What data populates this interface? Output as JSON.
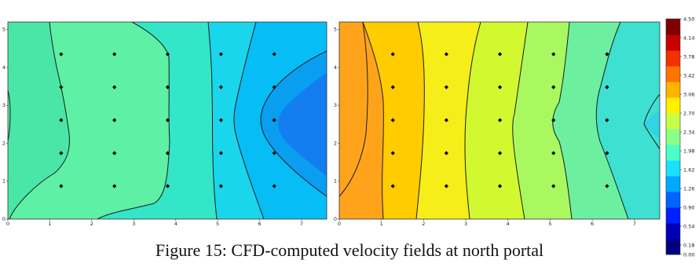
{
  "caption": "Figure 15: CFD-computed velocity fields at north portal",
  "chart_data": [
    {
      "type": "heatmap",
      "subtype": "filled-contour",
      "x_ticks": [
        "0",
        "1",
        "2",
        "3",
        "4",
        "5",
        "6",
        "7"
      ],
      "y_ticks": [
        "0",
        "1",
        "2",
        "3",
        "4",
        "5"
      ],
      "xlim": [
        0,
        7.6
      ],
      "ylim": [
        0,
        5.2
      ],
      "probe_points": {
        "x": [
          1.27,
          2.54,
          3.81,
          5.08,
          6.35
        ],
        "y": [
          0.87,
          1.74,
          2.61,
          3.48,
          4.35
        ]
      },
      "x": [
        0,
        1,
        2,
        3,
        4,
        5,
        6,
        7,
        7.6
      ],
      "field_description_values": [
        1.98,
        1.98,
        1.98,
        1.98,
        1.8,
        1.62,
        1.26,
        0.9,
        1.26
      ]
    },
    {
      "type": "heatmap",
      "subtype": "filled-contour",
      "x_ticks": [
        "0",
        "1",
        "2",
        "3",
        "4",
        "5",
        "6",
        "7"
      ],
      "y_ticks": [
        "0",
        "1",
        "2",
        "3",
        "4",
        "5"
      ],
      "xlim": [
        0,
        7.6
      ],
      "ylim": [
        0,
        5.2
      ],
      "probe_points": {
        "x": [
          1.27,
          2.54,
          3.81,
          5.08,
          6.35
        ],
        "y": [
          0.87,
          1.74,
          2.61,
          3.48,
          4.35
        ]
      },
      "x": [
        0,
        1,
        2,
        3,
        4,
        5,
        6,
        7,
        7.6
      ],
      "field_description_values": [
        3.06,
        2.95,
        2.6,
        2.4,
        2.34,
        2.1,
        1.9,
        1.62,
        1.62
      ]
    }
  ],
  "colorbar": {
    "ticks": [
      "4.50",
      "4.14",
      "3.78",
      "3.42",
      "3.06",
      "2.70",
      "2.34",
      "1.98",
      "1.62",
      "1.26",
      "0.90",
      "0.54",
      "0.18",
      "0.00"
    ],
    "bands": [
      "#000080",
      "#0000b8",
      "#0020ff",
      "#0064ff",
      "#00a8ff",
      "#18e0ff",
      "#4cffc6",
      "#8cff86",
      "#c8ff46",
      "#fff000",
      "#ffb400",
      "#ff7400",
      "#f23000",
      "#c80000",
      "#800000"
    ]
  }
}
